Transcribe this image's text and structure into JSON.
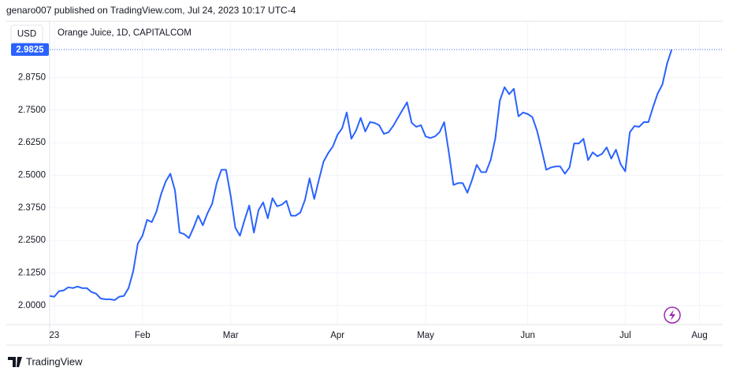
{
  "chart_data": {
    "type": "line",
    "caption": "genaro007 published on TradingView.com, Jul 24, 2023 10:17 UTC-4",
    "currency": "USD",
    "title": "Orange Juice, 1D, CAPITALCOM",
    "source": "TradingView",
    "color": "#2962ff",
    "grid": true,
    "ylim": [
      1.927,
      3.091
    ],
    "yticks": [
      {
        "value": 2.0,
        "label": "2.0000"
      },
      {
        "value": 2.125,
        "label": "2.1250"
      },
      {
        "value": 2.25,
        "label": "2.2500"
      },
      {
        "value": 2.375,
        "label": "2.3750"
      },
      {
        "value": 2.5,
        "label": "2.5000"
      },
      {
        "value": 2.625,
        "label": "2.6250"
      },
      {
        "value": 2.75,
        "label": "2.7500"
      },
      {
        "value": 2.875,
        "label": "2.8750"
      }
    ],
    "categories": [
      null,
      "23",
      null,
      null,
      null,
      null,
      null,
      null,
      null,
      null,
      null,
      null,
      null,
      null,
      null,
      null,
      null,
      null,
      null,
      null,
      "Feb",
      null,
      null,
      null,
      null,
      null,
      null,
      null,
      null,
      null,
      null,
      null,
      null,
      null,
      null,
      null,
      null,
      null,
      null,
      "Mar",
      null,
      null,
      null,
      null,
      null,
      null,
      null,
      null,
      null,
      null,
      null,
      null,
      null,
      null,
      null,
      null,
      null,
      null,
      null,
      null,
      null,
      null,
      "Apr",
      null,
      null,
      null,
      null,
      null,
      null,
      null,
      null,
      null,
      null,
      null,
      null,
      null,
      null,
      null,
      null,
      null,
      null,
      "May",
      null,
      null,
      null,
      null,
      null,
      null,
      null,
      null,
      null,
      null,
      null,
      null,
      null,
      null,
      null,
      null,
      null,
      null,
      null,
      null,
      null,
      "Jun",
      null,
      null,
      null,
      null,
      null,
      null,
      null,
      null,
      null,
      null,
      null,
      null,
      null,
      null,
      null,
      null,
      null,
      null,
      null,
      null,
      "Jul",
      null,
      null,
      null,
      null,
      null,
      null,
      null,
      null,
      null,
      null,
      null,
      null,
      null,
      null,
      null,
      "Aug",
      null,
      null,
      null,
      null,
      null
    ],
    "values": [
      2.037,
      2.034,
      2.055,
      2.058,
      2.07,
      2.067,
      2.073,
      2.067,
      2.067,
      2.052,
      2.046,
      2.027,
      2.024,
      2.024,
      2.021,
      2.034,
      2.037,
      2.067,
      2.131,
      2.238,
      2.268,
      2.329,
      2.32,
      2.36,
      2.427,
      2.476,
      2.506,
      2.442,
      2.28,
      2.274,
      2.259,
      2.299,
      2.345,
      2.308,
      2.354,
      2.39,
      2.47,
      2.521,
      2.521,
      2.421,
      2.299,
      2.268,
      2.329,
      2.384,
      2.28,
      2.366,
      2.396,
      2.335,
      2.412,
      2.381,
      2.387,
      2.402,
      2.345,
      2.345,
      2.357,
      2.405,
      2.488,
      2.409,
      2.482,
      2.552,
      2.585,
      2.61,
      2.655,
      2.68,
      2.741,
      2.64,
      2.671,
      2.72,
      2.668,
      2.704,
      2.701,
      2.692,
      2.659,
      2.665,
      2.689,
      2.72,
      2.75,
      2.78,
      2.701,
      2.686,
      2.692,
      2.649,
      2.643,
      2.649,
      2.665,
      2.704,
      2.588,
      2.463,
      2.47,
      2.47,
      2.433,
      2.482,
      2.54,
      2.512,
      2.512,
      2.558,
      2.64,
      2.787,
      2.838,
      2.811,
      2.832,
      2.726,
      2.741,
      2.735,
      2.723,
      2.671,
      2.598,
      2.521,
      2.53,
      2.534,
      2.534,
      2.506,
      2.53,
      2.622,
      2.622,
      2.64,
      2.558,
      2.588,
      2.573,
      2.582,
      2.607,
      2.564,
      2.598,
      2.543,
      2.515,
      2.665,
      2.689,
      2.686,
      2.704,
      2.704,
      2.762,
      2.814,
      2.848,
      2.927,
      2.9825,
      null,
      null,
      null,
      null,
      null,
      null,
      null,
      null,
      null,
      null,
      null
    ]
  }
}
